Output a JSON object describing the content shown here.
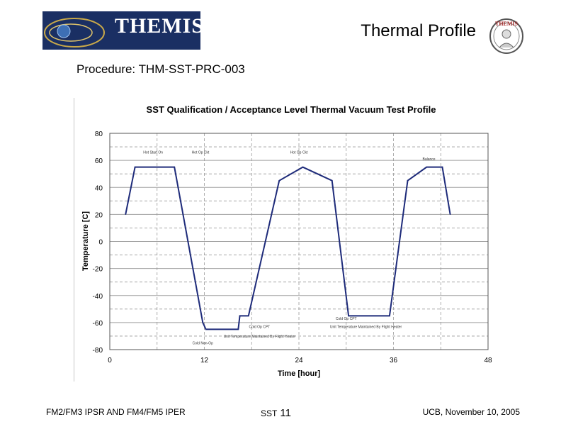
{
  "slide": {
    "title": "Thermal Profile",
    "procedure": "Procedure: THM-SST-PRC-003",
    "logo_text": "THEMIS",
    "seal_text": "THEMIS"
  },
  "footer": {
    "left": "FM2/FM3 IPSR AND FM4/FM5 IPER",
    "middle_label": "SST",
    "page_number": "11",
    "right": "UCB, November 10, 2005"
  },
  "colors": {
    "logo_bg": "#1a2f63",
    "line": "#1e2b7a",
    "grid_solid": "#a0a0a0",
    "grid_dashed": "#9a9a9a",
    "title_text": "#000000"
  },
  "chart_data": {
    "type": "line",
    "title": "SST Qualification / Acceptance Level Thermal Vacuum Test Profile",
    "xlabel": "Time [hour]",
    "ylabel": "Temperature [C]",
    "xlim": [
      0,
      48
    ],
    "ylim": [
      -80,
      80
    ],
    "xticks": [
      0,
      12,
      24,
      36,
      48
    ],
    "yticks": [
      80,
      60,
      40,
      20,
      0,
      -20,
      -40,
      -60,
      -80
    ],
    "grid": true,
    "series": [
      {
        "x": [
          2,
          3.2,
          8.2,
          11.8,
          12.2,
          16.3,
          16.5,
          17.6,
          21.5,
          24.5,
          28.2,
          30.3,
          35.5,
          37.8,
          40.2,
          42.2,
          43.2
        ],
        "y": [
          20,
          55,
          55,
          -60,
          -65,
          -65,
          -55,
          -55,
          45,
          55,
          45,
          -55,
          -55,
          45,
          55,
          55,
          20
        ]
      }
    ],
    "annotations": [
      {
        "text": "Hot Start On",
        "x": 5.5,
        "y": 65
      },
      {
        "text": "Hot Op Ckt",
        "x": 11.5,
        "y": 65
      },
      {
        "text": "Hot Op Ckt",
        "x": 24,
        "y": 65
      },
      {
        "text": "Balance",
        "x": 40.5,
        "y": 60
      },
      {
        "text": "Cold Non-Op",
        "x": 11.8,
        "y": -76
      },
      {
        "text": "Cold Op CPT",
        "x": 19,
        "y": -64
      },
      {
        "text": "Unit Temperature Maintained By Flight Heater",
        "x": 19,
        "y": -71
      },
      {
        "text": "Cold Op CPT",
        "x": 30,
        "y": -58
      },
      {
        "text": "Unit Temperature Maintained By Flight Heater",
        "x": 32.5,
        "y": -64
      }
    ]
  }
}
